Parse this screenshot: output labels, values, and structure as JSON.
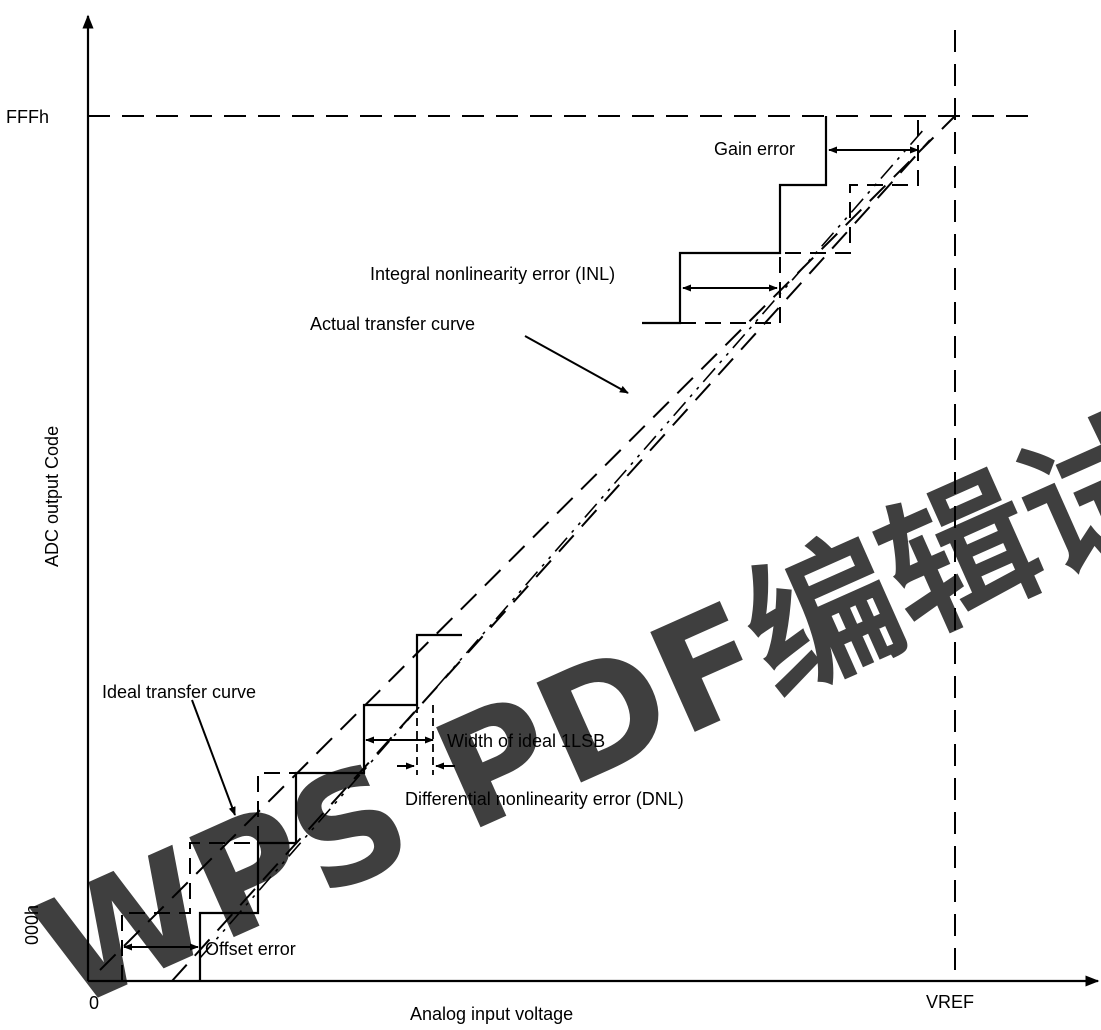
{
  "axes": {
    "x_label": "Analog input voltage",
    "y_label": "ADC output Code",
    "x_origin": "0",
    "x_end": "VREF",
    "y_top": "FFFh",
    "y_bottom": "000h"
  },
  "labels": {
    "gain_error": "Gain error",
    "inl": "Integral nonlinearity error (INL)",
    "actual_curve": "Actual transfer curve",
    "ideal_curve": "Ideal transfer curve",
    "width_1lsb": "Width of ideal 1LSB",
    "dnl": "Differential nonlinearity error (DNL)",
    "offset_error": "Offset error"
  },
  "watermark": {
    "text": "WPS PDF编辑试用",
    "color": "#f3a7a7"
  },
  "colors": {
    "line": "#000000",
    "background": "#ffffff"
  }
}
